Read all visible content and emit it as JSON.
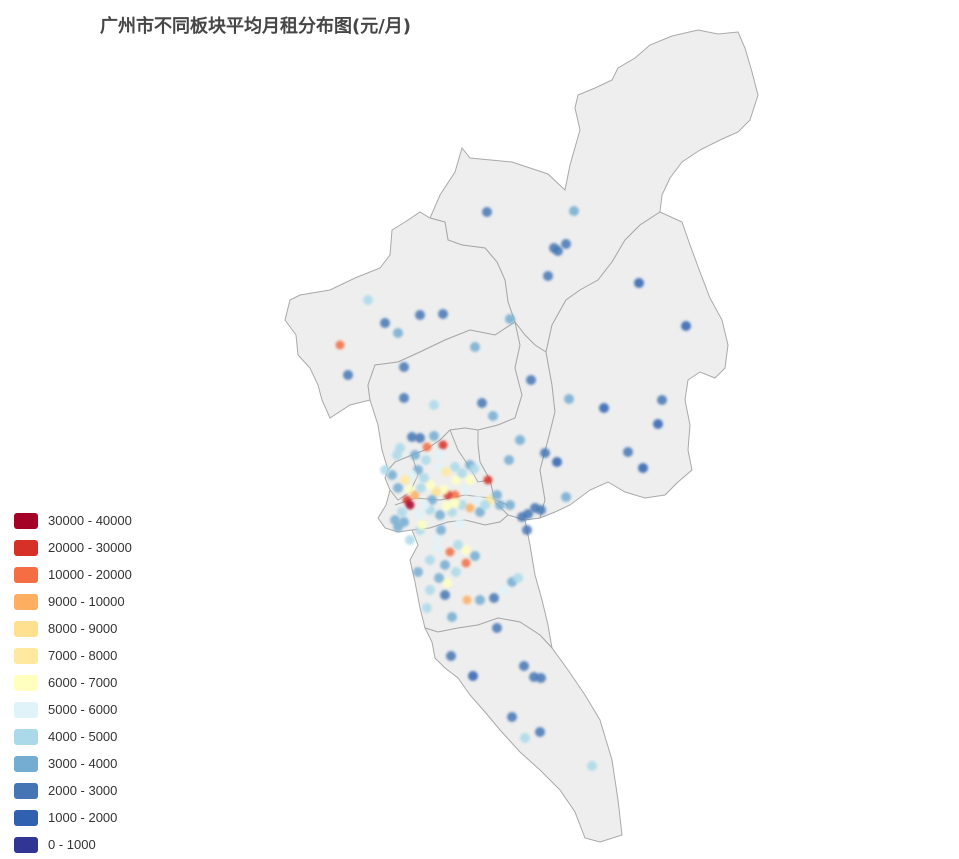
{
  "title": "广州市不同板块平均月租分布图(元/月)",
  "colors": {
    "region_fill": "#eeeeee",
    "region_stroke": "#a9a9a9"
  },
  "legend": {
    "items": [
      {
        "label": "30000 - 40000",
        "color": "#a50026"
      },
      {
        "label": "20000 - 30000",
        "color": "#d73027"
      },
      {
        "label": "10000 - 20000",
        "color": "#f46d43"
      },
      {
        "label": "9000 - 10000",
        "color": "#fdae61"
      },
      {
        "label": "8000 - 9000",
        "color": "#fee090"
      },
      {
        "label": "7000 - 8000",
        "color": "#ffe9a0"
      },
      {
        "label": "6000 - 7000",
        "color": "#ffffbf"
      },
      {
        "label": "5000 - 6000",
        "color": "#e0f3f8"
      },
      {
        "label": "4000 - 5000",
        "color": "#abd9e9"
      },
      {
        "label": "3000 - 4000",
        "color": "#74add1"
      },
      {
        "label": "2000 - 3000",
        "color": "#4575b4"
      },
      {
        "label": "1000 - 2000",
        "color": "#3060b0"
      },
      {
        "label": "0 - 1000",
        "color": "#313695"
      }
    ]
  }
}
